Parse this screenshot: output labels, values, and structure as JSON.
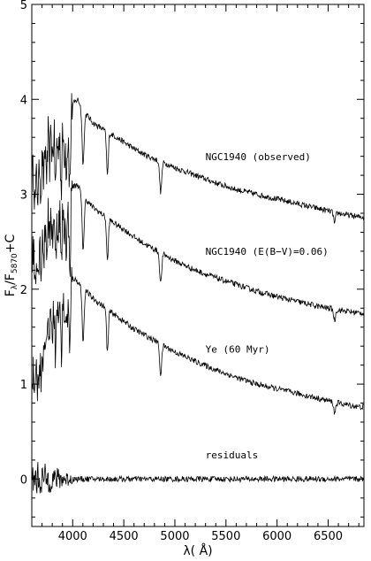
{
  "chart_data": {
    "type": "line",
    "title": "",
    "xlabel": "λ( Å)",
    "ylabel": {
      "main": "F",
      "sub1": "λ",
      "mid": "/F",
      "sub2": "5870",
      "tail": "+C"
    },
    "xlim": [
      3600,
      6850
    ],
    "ylim": [
      -0.5,
      5
    ],
    "xticks": [
      4000,
      4500,
      5000,
      5500,
      6000,
      6500
    ],
    "yticks": [
      0,
      1,
      2,
      3,
      4,
      5
    ],
    "grid": false,
    "legend": "none",
    "colors": {
      "line": "#000000",
      "axes": "#000000"
    },
    "absorption_lines": [
      3835,
      3889,
      3933,
      3970,
      4102,
      4340,
      4861,
      6563
    ],
    "series": [
      {
        "name": "NGC1940 (observed)",
        "label_at": [
          5300,
          3.36
        ],
        "offset": 3.0,
        "x": [
          3600,
          3650,
          3700,
          3750,
          3800,
          3850,
          3900,
          3950,
          4000,
          4050,
          4100,
          4150,
          4200,
          4300,
          4400,
          4500,
          4600,
          4700,
          4800,
          4900,
          5000,
          5200,
          5400,
          5600,
          5800,
          6000,
          6200,
          6400,
          6600,
          6800
        ],
        "y": [
          3.2,
          3.3,
          3.45,
          3.6,
          3.75,
          3.8,
          3.82,
          3.85,
          3.95,
          4.0,
          3.88,
          3.82,
          3.75,
          3.68,
          3.62,
          3.55,
          3.48,
          3.42,
          3.37,
          3.33,
          3.28,
          3.2,
          3.12,
          3.05,
          3.0,
          2.95,
          2.9,
          2.85,
          2.8,
          2.76
        ]
      },
      {
        "name": "NGC1940 (E(B−V)=0.06)",
        "label_at": [
          5300,
          2.36
        ],
        "offset": 2.0,
        "x": [
          3600,
          3650,
          3700,
          3750,
          3800,
          3850,
          3900,
          3950,
          4000,
          4050,
          4100,
          4150,
          4200,
          4300,
          4400,
          4500,
          4600,
          4700,
          4800,
          4900,
          5000,
          5200,
          5400,
          5600,
          5800,
          6000,
          6200,
          6400,
          6600,
          6800
        ],
        "y": [
          2.35,
          2.5,
          2.65,
          2.8,
          2.92,
          2.98,
          3.0,
          3.02,
          3.08,
          3.1,
          2.98,
          2.92,
          2.86,
          2.78,
          2.7,
          2.63,
          2.55,
          2.48,
          2.42,
          2.36,
          2.3,
          2.2,
          2.12,
          2.05,
          1.98,
          1.92,
          1.87,
          1.82,
          1.78,
          1.75
        ]
      },
      {
        "name": "Ye (60 Myr)",
        "label_at": [
          5300,
          1.33
        ],
        "offset": 1.0,
        "x": [
          3600,
          3650,
          3700,
          3750,
          3800,
          3850,
          3900,
          3950,
          4000,
          4050,
          4100,
          4150,
          4200,
          4300,
          4400,
          4500,
          4600,
          4700,
          4800,
          4900,
          5000,
          5200,
          5400,
          5600,
          5800,
          6000,
          6200,
          6400,
          6600,
          6800
        ],
        "y": [
          1.0,
          1.25,
          1.5,
          1.75,
          1.95,
          2.05,
          2.08,
          2.1,
          2.12,
          2.08,
          2.02,
          1.96,
          1.9,
          1.82,
          1.74,
          1.66,
          1.58,
          1.52,
          1.46,
          1.4,
          1.34,
          1.24,
          1.15,
          1.07,
          1.0,
          0.95,
          0.9,
          0.85,
          0.8,
          0.76
        ]
      },
      {
        "name": "residuals",
        "label_at": [
          5300,
          0.22
        ],
        "offset": 0.0,
        "x": [
          3600,
          6850
        ],
        "y": [
          0.0,
          0.0
        ]
      }
    ]
  }
}
